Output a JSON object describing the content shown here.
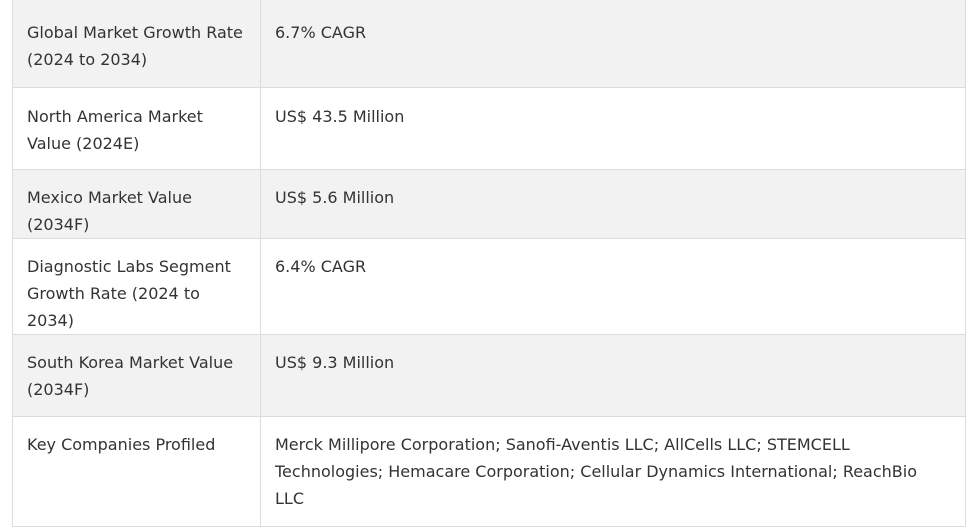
{
  "rows": [
    {
      "label": "Global Market Growth Rate (2024 to 2034)",
      "value": "6.7% CAGR"
    },
    {
      "label": "North America Market Value (2024E)",
      "value": "US$ 43.5 Million"
    },
    {
      "label": "Mexico Market Value (2034F)",
      "value": "US$ 5.6 Million"
    },
    {
      "label": "Diagnostic Labs Segment Growth Rate (2024 to 2034)",
      "value": "6.4% CAGR"
    },
    {
      "label": "South Korea Market Value (2034F)",
      "value": "US$ 9.3 Million"
    },
    {
      "label": "Key Companies Profiled",
      "value": "Merck Millipore Corporation; Sanofi-Aventis LLC; AllCells LLC; STEMCELL Technologies; Hemacare Corporation; Cellular Dynamics International; ReachBio LLC"
    }
  ]
}
